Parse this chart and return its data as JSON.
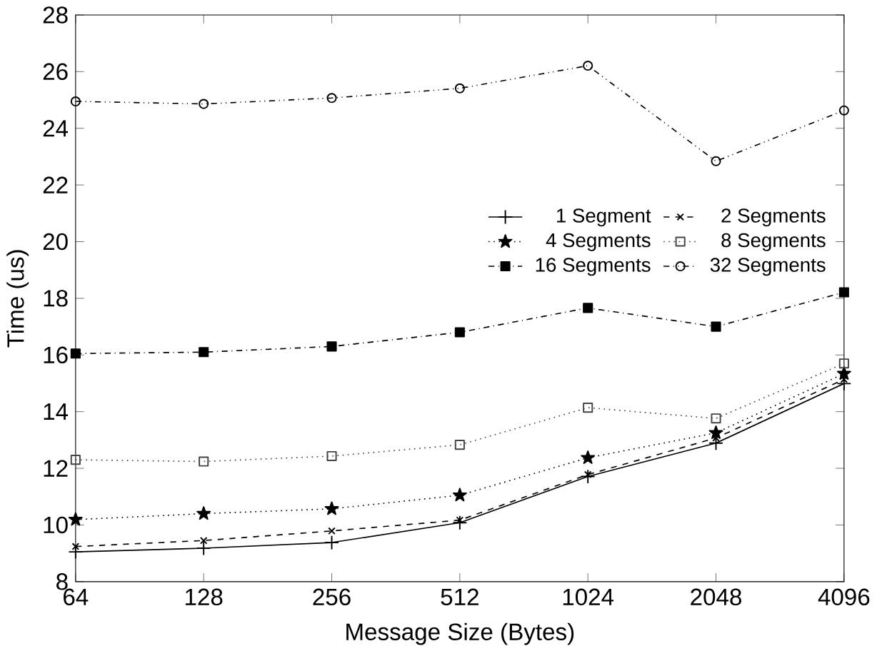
{
  "chart_data": {
    "type": "line",
    "xlabel": "Message Size (Bytes)",
    "ylabel": "Time (us)",
    "categories": [
      "64",
      "128",
      "256",
      "512",
      "1024",
      "2048",
      "4096"
    ],
    "ylim": [
      8,
      28
    ],
    "yticks": [
      8,
      10,
      12,
      14,
      16,
      18,
      20,
      22,
      24,
      26,
      28
    ],
    "grid": false,
    "legend": "right",
    "series": [
      {
        "name": "1 Segment",
        "color": "#000000",
        "line_style": "solid",
        "marker": "plus",
        "values": [
          9.05,
          9.18,
          9.38,
          10.08,
          11.71,
          12.89,
          14.99
        ]
      },
      {
        "name": "2 Segments",
        "color": "#000000",
        "line_style": "dashed",
        "marker": "cross",
        "values": [
          9.24,
          9.45,
          9.79,
          10.17,
          11.78,
          13.07,
          15.14
        ]
      },
      {
        "name": "4 Segments",
        "color": "#000000",
        "line_style": "dotted",
        "marker": "star",
        "values": [
          10.19,
          10.4,
          10.57,
          11.05,
          12.37,
          13.25,
          15.34
        ]
      },
      {
        "name": "8 Segments",
        "color": "#444444",
        "line_style": "dotted",
        "marker": "square",
        "values": [
          12.3,
          12.24,
          12.43,
          12.83,
          14.14,
          13.76,
          15.7
        ]
      },
      {
        "name": "16 Segments",
        "color": "#000000",
        "line_style": "dashdot",
        "marker": "square*",
        "values": [
          16.05,
          16.1,
          16.3,
          16.8,
          17.66,
          17.0,
          18.21
        ]
      },
      {
        "name": "32 Segments",
        "color": "#000000",
        "line_style": "dashdotdot",
        "marker": "circle",
        "values": [
          24.95,
          24.86,
          25.07,
          25.41,
          26.21,
          22.84,
          24.63
        ]
      }
    ]
  }
}
